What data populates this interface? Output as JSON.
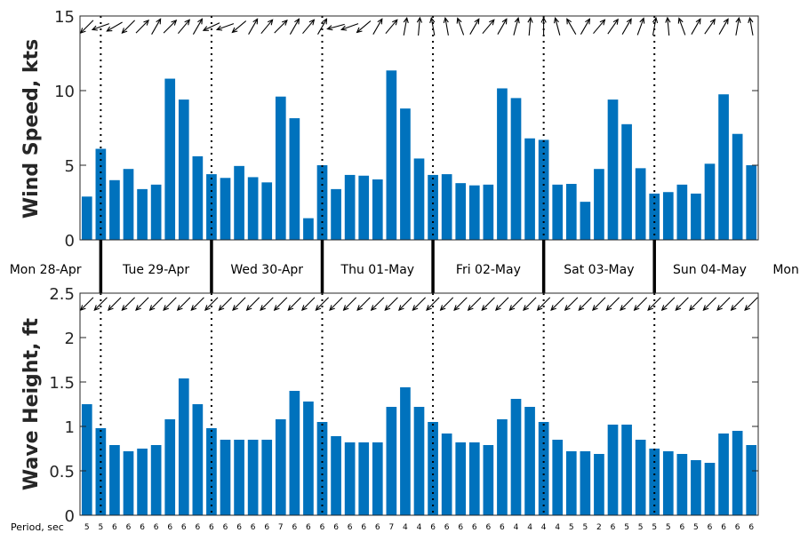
{
  "chart_data": [
    {
      "type": "bar",
      "ylabel": "Wind Speed, kts",
      "ylim": [
        0,
        15
      ],
      "yticks": [
        "0",
        "5",
        "10",
        "15"
      ],
      "bar_color": "#0072bd",
      "values": [
        2.9,
        6.1,
        4.0,
        4.75,
        3.4,
        3.7,
        10.8,
        9.4,
        5.6,
        4.4,
        4.15,
        4.95,
        4.2,
        3.85,
        9.6,
        8.15,
        1.45,
        5.0,
        3.4,
        4.35,
        4.3,
        4.05,
        11.35,
        8.8,
        5.45,
        4.35,
        4.4,
        3.8,
        3.65,
        3.7,
        10.15,
        9.5,
        6.8,
        6.7,
        3.7,
        3.75,
        2.55,
        4.75,
        9.4,
        7.75,
        4.8,
        3.1,
        3.2,
        3.7,
        3.1,
        5.1,
        9.75,
        7.1,
        5.0
      ]
    },
    {
      "type": "bar",
      "ylabel": "Wave Height, ft",
      "ylim": [
        0,
        2.5
      ],
      "yticks": [
        "0",
        "0.5",
        "1",
        "1.5",
        "2",
        "2.5"
      ],
      "bar_color": "#0072bd",
      "values": [
        1.25,
        0.98,
        0.79,
        0.72,
        0.75,
        0.79,
        1.08,
        1.54,
        1.25,
        0.98,
        0.85,
        0.85,
        0.85,
        0.85,
        1.08,
        1.4,
        1.28,
        1.05,
        0.89,
        0.82,
        0.82,
        0.82,
        1.22,
        1.44,
        1.22,
        1.05,
        0.92,
        0.82,
        0.82,
        0.79,
        1.08,
        1.31,
        1.22,
        1.05,
        0.85,
        0.72,
        0.72,
        0.69,
        1.02,
        1.02,
        0.85,
        0.75,
        0.72,
        0.69,
        0.62,
        0.59,
        0.92,
        0.95,
        0.79
      ]
    }
  ],
  "day_labels": [
    "Mon 28-Apr",
    "Tue 29-Apr",
    "Wed 30-Apr",
    "Thu 01-May",
    "Fri 02-May",
    "Sat 03-May",
    "Sun 04-May",
    "Mon"
  ],
  "period_title": "Period, sec",
  "periods": [
    "5",
    "5",
    "6",
    "6",
    "6",
    "6",
    "6",
    "6",
    "6",
    "6",
    "6",
    "6",
    "6",
    "6",
    "7",
    "6",
    "6",
    "6",
    "6",
    "6",
    "6",
    "6",
    "7",
    "4",
    "4",
    "6",
    "6",
    "6",
    "6",
    "6",
    "6",
    "4",
    "4",
    "4",
    "4",
    "5",
    "5",
    "2",
    "6",
    "5",
    "5",
    "5",
    "5",
    "6",
    "5",
    "6",
    "6",
    "6",
    "6"
  ],
  "wind_arrow_directions_deg": [
    135,
    160,
    150,
    135,
    315,
    300,
    315,
    310,
    300,
    155,
    160,
    140,
    300,
    310,
    315,
    300,
    310,
    300,
    165,
    160,
    140,
    300,
    310,
    280,
    275,
    260,
    260,
    250,
    300,
    310,
    300,
    285,
    275,
    270,
    255,
    240,
    300,
    310,
    305,
    300,
    290,
    280,
    265,
    250,
    300,
    305,
    300,
    280,
    260
  ],
  "wave_arrow_directions_deg": [
    135,
    135,
    135,
    135,
    135,
    135,
    135,
    135,
    135,
    135,
    135,
    135,
    135,
    135,
    135,
    135,
    135,
    135,
    135,
    135,
    135,
    135,
    135,
    135,
    135,
    135,
    135,
    135,
    135,
    135,
    135,
    135,
    135,
    135,
    135,
    135,
    135,
    135,
    135,
    135,
    135,
    135,
    135,
    135,
    135,
    135,
    135,
    135,
    135
  ]
}
